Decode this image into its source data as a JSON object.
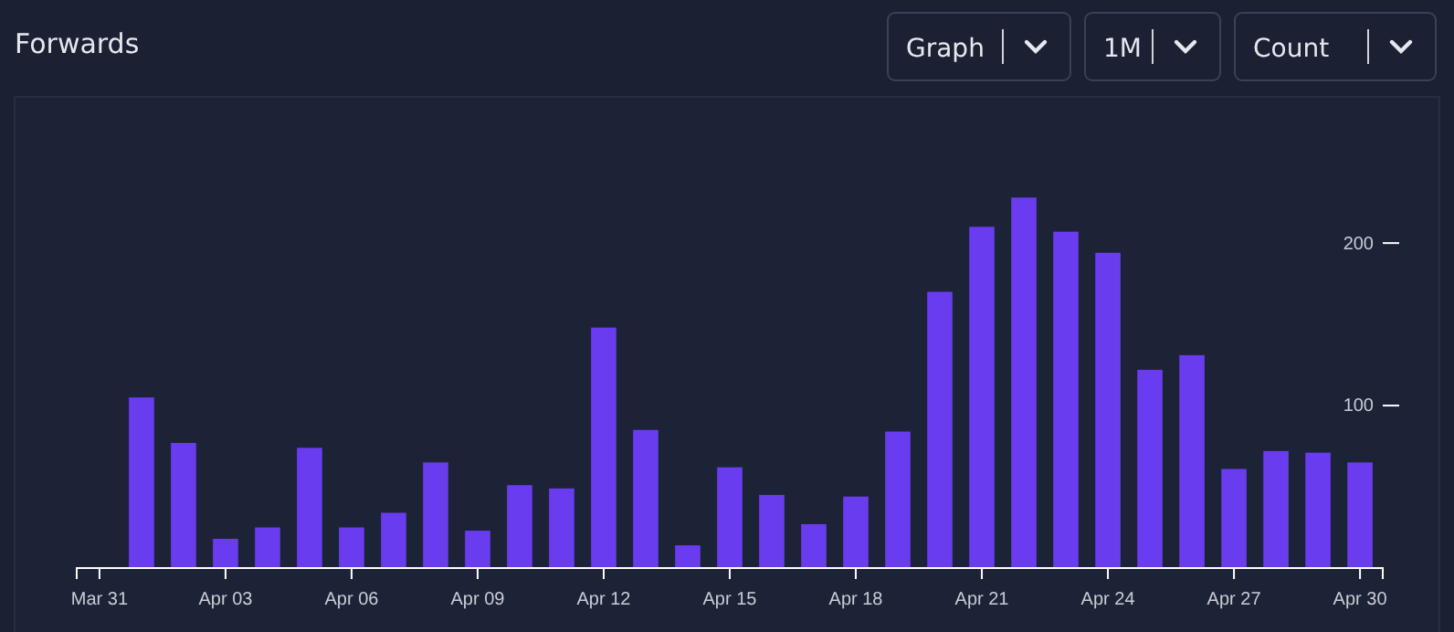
{
  "chart_data": {
    "type": "bar",
    "title": "Forwards",
    "annotations": [
      "Graph",
      "1M",
      "Count"
    ],
    "x": [
      "--04-01",
      "--04-02",
      "--04-03",
      "--04-04",
      "--04-05",
      "--04-06",
      "--04-07",
      "--04-08",
      "--04-09",
      "--04-10",
      "--04-11",
      "--04-12",
      "--04-13",
      "--04-14",
      "--04-15",
      "--04-16",
      "--04-17",
      "--04-18",
      "--04-19",
      "--04-20",
      "--04-21",
      "--04-22",
      "--04-23",
      "--04-24",
      "--04-25",
      "--04-26",
      "--04-27",
      "--04-28",
      "--04-29",
      "--04-30"
    ],
    "values": [
      105,
      77,
      18,
      25,
      74,
      25,
      34,
      65,
      23,
      51,
      49,
      148,
      85,
      14,
      62,
      45,
      27,
      44,
      84,
      170,
      210,
      228,
      207,
      194,
      122,
      131,
      61,
      72,
      71,
      65
    ],
    "color": "#6a3cf0",
    "xlim": [
      "--03-30T11:00",
      "--04-30T13:00"
    ],
    "xticks": [
      {
        "value": "--03-31",
        "label": "Mar 31"
      },
      {
        "value": "--04-03",
        "label": "Apr 03"
      },
      {
        "value": "--04-06",
        "label": "Apr 06"
      },
      {
        "value": "--04-09",
        "label": "Apr 09"
      },
      {
        "value": "--04-12",
        "label": "Apr 12"
      },
      {
        "value": "--04-15",
        "label": "Apr 15"
      },
      {
        "value": "--04-18",
        "label": "Apr 18"
      },
      {
        "value": "--04-21",
        "label": "Apr 21"
      },
      {
        "value": "--04-24",
        "label": "Apr 24"
      },
      {
        "value": "--04-27",
        "label": "Apr 27"
      },
      {
        "value": "--04-30",
        "label": "Apr 30"
      }
    ],
    "ylim": [
      0,
      290
    ],
    "yticks": [
      100,
      200
    ],
    "grid": false
  }
}
